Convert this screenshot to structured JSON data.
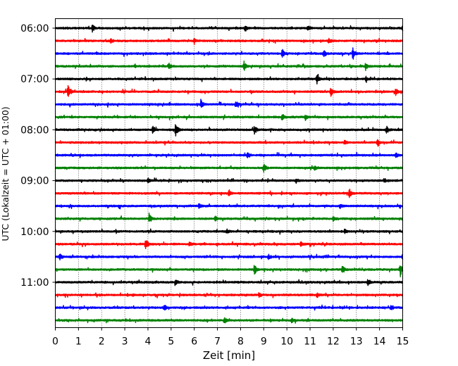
{
  "chart_data": {
    "type": "line",
    "xlabel": "Zeit  [min]",
    "ylabel": "UTC (Lokalzeit = UTC + 01:00)",
    "xlim": [
      0,
      15
    ],
    "x_ticks": [
      "0",
      "1",
      "2",
      "3",
      "4",
      "5",
      "6",
      "7",
      "8",
      "9",
      "10",
      "11",
      "12",
      "13",
      "14",
      "15"
    ],
    "y_ticks": [
      "06:00",
      "07:00",
      "08:00",
      "09:00",
      "10:00",
      "11:00"
    ],
    "grid": "vertical dotted at each minute",
    "trace_colors": [
      "#000000",
      "#ff0000",
      "#0000ff",
      "#008000"
    ],
    "traces": [
      {
        "start": "06:00",
        "events": [
          {
            "t": 1.6,
            "a": 5
          },
          {
            "t": 8.2,
            "a": 5
          },
          {
            "t": 10.9,
            "a": 4
          },
          {
            "t": 15.0,
            "a": 4
          }
        ]
      },
      {
        "start": "06:15",
        "events": [
          {
            "t": 2.4,
            "a": 3
          },
          {
            "t": 6.0,
            "a": 3
          },
          {
            "t": 11.8,
            "a": 4
          }
        ]
      },
      {
        "start": "06:30",
        "events": [
          {
            "t": 9.8,
            "a": 6
          },
          {
            "t": 11.6,
            "a": 6
          },
          {
            "t": 12.85,
            "a": 9
          }
        ]
      },
      {
        "start": "06:45",
        "events": [
          {
            "t": 4.9,
            "a": 4
          },
          {
            "t": 8.15,
            "a": 6
          },
          {
            "t": 13.4,
            "a": 5
          }
        ]
      },
      {
        "start": "07:00",
        "events": [
          {
            "t": 11.3,
            "a": 6
          },
          {
            "t": 13.4,
            "a": 3
          }
        ]
      },
      {
        "start": "07:15",
        "events": [
          {
            "t": 0.55,
            "a": 13
          },
          {
            "t": 11.9,
            "a": 6
          },
          {
            "t": 14.7,
            "a": 5
          }
        ]
      },
      {
        "start": "07:30",
        "events": [
          {
            "t": 6.3,
            "a": 7
          },
          {
            "t": 7.8,
            "a": 5
          }
        ]
      },
      {
        "start": "07:45",
        "events": [
          {
            "t": 9.8,
            "a": 4
          },
          {
            "t": 10.8,
            "a": 4
          }
        ]
      },
      {
        "start": "08:00",
        "events": [
          {
            "t": 4.2,
            "a": 5
          },
          {
            "t": 5.2,
            "a": 10
          },
          {
            "t": 8.6,
            "a": 6
          },
          {
            "t": 14.3,
            "a": 5
          }
        ]
      },
      {
        "start": "08:15",
        "events": [
          {
            "t": 12.5,
            "a": 3
          },
          {
            "t": 13.9,
            "a": 4
          }
        ]
      },
      {
        "start": "08:30",
        "events": [
          {
            "t": 8.3,
            "a": 4
          },
          {
            "t": 14.7,
            "a": 4
          }
        ]
      },
      {
        "start": "08:45",
        "events": [
          {
            "t": 9.0,
            "a": 6
          },
          {
            "t": 11.2,
            "a": 3
          }
        ]
      },
      {
        "start": "09:00",
        "events": [
          {
            "t": 4.0,
            "a": 3
          },
          {
            "t": 10.4,
            "a": 3
          },
          {
            "t": 14.2,
            "a": 3
          }
        ]
      },
      {
        "start": "09:15",
        "events": [
          {
            "t": 7.5,
            "a": 4
          },
          {
            "t": 12.7,
            "a": 6
          }
        ]
      },
      {
        "start": "09:30",
        "events": [
          {
            "t": 6.2,
            "a": 3
          },
          {
            "t": 12.3,
            "a": 3
          }
        ]
      },
      {
        "start": "09:45",
        "events": [
          {
            "t": 4.05,
            "a": 8
          },
          {
            "t": 6.9,
            "a": 4
          },
          {
            "t": 12.0,
            "a": 3
          }
        ]
      },
      {
        "start": "10:00",
        "events": [
          {
            "t": 7.4,
            "a": 3
          },
          {
            "t": 12.5,
            "a": 3
          }
        ]
      },
      {
        "start": "10:15",
        "events": [
          {
            "t": 3.9,
            "a": 9
          },
          {
            "t": 5.8,
            "a": 3
          },
          {
            "t": 10.6,
            "a": 3
          }
        ]
      },
      {
        "start": "10:30",
        "events": [
          {
            "t": 0.2,
            "a": 4
          },
          {
            "t": 9.2,
            "a": 3
          },
          {
            "t": 15.0,
            "a": 4
          }
        ]
      },
      {
        "start": "10:45",
        "events": [
          {
            "t": 8.6,
            "a": 8
          },
          {
            "t": 12.4,
            "a": 6
          },
          {
            "t": 14.9,
            "a": 9
          }
        ]
      },
      {
        "start": "11:00",
        "events": [
          {
            "t": 13.5,
            "a": 5
          },
          {
            "t": 5.2,
            "a": 3
          }
        ]
      },
      {
        "start": "11:15",
        "events": [
          {
            "t": 8.8,
            "a": 4
          },
          {
            "t": 11.3,
            "a": 3
          }
        ]
      },
      {
        "start": "11:30",
        "events": [
          {
            "t": 4.7,
            "a": 4
          },
          {
            "t": 14.5,
            "a": 4
          }
        ]
      },
      {
        "start": "11:45",
        "events": [
          {
            "t": 7.3,
            "a": 4
          },
          {
            "t": 10.2,
            "a": 3
          }
        ]
      }
    ]
  }
}
